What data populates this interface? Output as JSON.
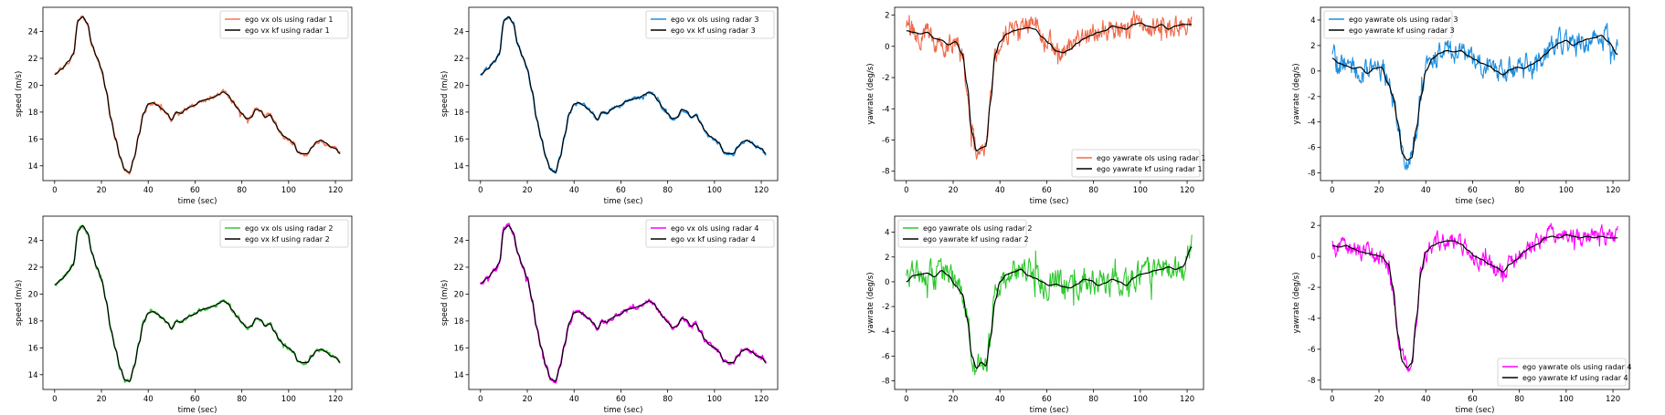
{
  "chart_data": [
    {
      "type": "line",
      "xlabel": "time (sec)",
      "ylabel": "speed (m/s)",
      "xlim": [
        -5,
        127
      ],
      "ylim": [
        12.9,
        25.8
      ],
      "xticks": [
        0,
        20,
        40,
        60,
        80,
        100,
        120
      ],
      "yticks": [
        14,
        16,
        18,
        20,
        22,
        24
      ],
      "legend_position": "upper-right",
      "series": [
        {
          "name": "ego vx ols using radar 1",
          "color": "#f07a55",
          "noise": 0.12,
          "width": 1.6
        },
        {
          "name": "ego vx kf using radar 1",
          "color": "#000000",
          "width": 1.2
        }
      ],
      "signal": {
        "x": [
          0,
          3,
          6,
          8,
          10,
          12,
          14,
          16,
          18,
          20,
          22,
          24,
          26,
          28,
          30,
          32,
          34,
          36,
          38,
          40,
          42,
          44,
          46,
          48,
          50,
          52,
          54,
          56,
          58,
          60,
          62,
          64,
          66,
          68,
          70,
          72,
          74,
          76,
          78,
          80,
          82,
          84,
          86,
          88,
          90,
          92,
          94,
          96,
          98,
          100,
          102,
          104,
          106,
          108,
          110,
          112,
          114,
          116,
          118,
          120,
          122
        ],
        "y": [
          20.8,
          21.2,
          21.8,
          22.3,
          24.8,
          25.1,
          24.6,
          23.0,
          22.1,
          21.2,
          19.6,
          17.5,
          16.0,
          14.6,
          13.7,
          13.5,
          14.6,
          16.3,
          17.9,
          18.6,
          18.7,
          18.5,
          18.2,
          17.9,
          17.4,
          18.0,
          17.9,
          18.2,
          18.4,
          18.5,
          18.8,
          18.9,
          19.0,
          19.1,
          19.3,
          19.5,
          19.3,
          18.8,
          18.3,
          17.9,
          17.5,
          17.6,
          18.2,
          18.1,
          17.6,
          17.8,
          17.2,
          16.6,
          16.2,
          16.0,
          15.7,
          15.0,
          14.9,
          14.9,
          15.4,
          15.8,
          15.9,
          15.7,
          15.4,
          15.3,
          14.9
        ]
      }
    },
    {
      "type": "line",
      "xlabel": "time (sec)",
      "ylabel": "speed (m/s)",
      "xlim": [
        -5,
        127
      ],
      "ylim": [
        12.9,
        25.8
      ],
      "xticks": [
        0,
        20,
        40,
        60,
        80,
        100,
        120
      ],
      "yticks": [
        14,
        16,
        18,
        20,
        22,
        24
      ],
      "legend_position": "upper-right",
      "series": [
        {
          "name": "ego vx ols using radar 3",
          "color": "#1f8fe0",
          "noise": 0.1,
          "width": 1.6
        },
        {
          "name": "ego vx kf using radar 3",
          "color": "#000000",
          "width": 1.2
        }
      ],
      "signal": {
        "x": [
          0,
          3,
          6,
          8,
          10,
          12,
          14,
          16,
          18,
          20,
          22,
          24,
          26,
          28,
          30,
          32,
          34,
          36,
          38,
          40,
          42,
          44,
          46,
          48,
          50,
          52,
          54,
          56,
          58,
          60,
          62,
          64,
          66,
          68,
          70,
          72,
          74,
          76,
          78,
          80,
          82,
          84,
          86,
          88,
          90,
          92,
          94,
          96,
          98,
          100,
          102,
          104,
          106,
          108,
          110,
          112,
          114,
          116,
          118,
          120,
          122
        ],
        "y": [
          20.8,
          21.2,
          21.8,
          22.3,
          24.8,
          25.1,
          24.6,
          23.0,
          22.1,
          21.2,
          19.6,
          17.5,
          16.0,
          14.6,
          13.7,
          13.5,
          14.6,
          16.3,
          17.9,
          18.6,
          18.7,
          18.5,
          18.2,
          17.9,
          17.4,
          18.0,
          17.9,
          18.2,
          18.4,
          18.5,
          18.8,
          18.9,
          19.0,
          19.1,
          19.3,
          19.5,
          19.3,
          18.8,
          18.3,
          17.9,
          17.5,
          17.6,
          18.2,
          18.1,
          17.6,
          17.8,
          17.2,
          16.6,
          16.2,
          16.0,
          15.7,
          15.0,
          14.9,
          14.9,
          15.4,
          15.8,
          15.9,
          15.7,
          15.4,
          15.3,
          14.9
        ]
      }
    },
    {
      "type": "line",
      "xlabel": "time (sec)",
      "ylabel": "yawrate (deg/s)",
      "xlim": [
        -5,
        127
      ],
      "ylim": [
        -8.6,
        2.5
      ],
      "xticks": [
        0,
        20,
        40,
        60,
        80,
        100,
        120
      ],
      "yticks": [
        -8,
        -6,
        -4,
        -2,
        0,
        2
      ],
      "legend_position": "lower-right",
      "series": [
        {
          "name": "ego yawrate ols using radar 1",
          "color": "#f06a4a",
          "noise": 0.55,
          "width": 1.1
        },
        {
          "name": "ego yawrate kf using radar 1",
          "color": "#000000",
          "width": 1.2
        }
      ],
      "signal": {
        "x": [
          0,
          3,
          6,
          9,
          12,
          15,
          18,
          21,
          24,
          26,
          28,
          30,
          32,
          34,
          36,
          38,
          40,
          43,
          46,
          49,
          52,
          55,
          58,
          61,
          64,
          67,
          70,
          73,
          76,
          79,
          82,
          85,
          88,
          91,
          94,
          97,
          100,
          103,
          106,
          109,
          112,
          115,
          118,
          122
        ],
        "y": [
          1.0,
          0.9,
          0.8,
          0.9,
          0.5,
          0.4,
          0.1,
          0.3,
          -0.5,
          -2.5,
          -5.5,
          -6.7,
          -6.5,
          -6.4,
          -3.5,
          -0.5,
          0.3,
          0.8,
          1.0,
          1.1,
          1.2,
          1.1,
          0.6,
          0.2,
          -0.3,
          -0.4,
          -0.2,
          0.2,
          0.5,
          0.7,
          0.9,
          1.0,
          1.3,
          1.2,
          1.1,
          1.4,
          1.5,
          1.3,
          1.2,
          1.4,
          1.1,
          1.3,
          1.4,
          1.4
        ]
      }
    },
    {
      "type": "line",
      "xlabel": "time (sec)",
      "ylabel": "yawrate (deg/s)",
      "xlim": [
        -5,
        127
      ],
      "ylim": [
        -8.6,
        5.0
      ],
      "xticks": [
        0,
        20,
        40,
        60,
        80,
        100,
        120
      ],
      "yticks": [
        -8,
        -6,
        -4,
        -2,
        0,
        2,
        4
      ],
      "legend_position": "upper-left",
      "series": [
        {
          "name": "ego yawrate ols using radar 3",
          "color": "#1f8fe0",
          "noise": 0.75,
          "width": 1.1
        },
        {
          "name": "ego yawrate kf using radar 3",
          "color": "#000000",
          "width": 1.2
        }
      ],
      "signal": {
        "x": [
          0,
          3,
          6,
          9,
          12,
          15,
          18,
          21,
          24,
          26,
          28,
          30,
          32,
          34,
          36,
          38,
          40,
          43,
          46,
          49,
          52,
          55,
          58,
          61,
          64,
          67,
          70,
          73,
          76,
          79,
          82,
          85,
          88,
          91,
          94,
          97,
          100,
          103,
          106,
          109,
          112,
          115,
          118,
          122
        ],
        "y": [
          1.0,
          0.6,
          0.4,
          0.2,
          0.3,
          -0.2,
          0.2,
          0.3,
          -1.0,
          -2.0,
          -4.0,
          -6.5,
          -7.0,
          -6.8,
          -4.5,
          -2.0,
          0.0,
          1.0,
          1.4,
          1.6,
          1.5,
          1.6,
          1.2,
          0.9,
          0.6,
          0.4,
          0.0,
          -0.3,
          0.1,
          0.3,
          0.2,
          0.5,
          0.8,
          1.3,
          1.8,
          2.2,
          2.4,
          2.0,
          2.3,
          2.5,
          2.6,
          2.8,
          2.3,
          1.3
        ]
      }
    },
    {
      "type": "line",
      "xlabel": "time (sec)",
      "ylabel": "speed (m/s)",
      "xlim": [
        -5,
        127
      ],
      "ylim": [
        12.9,
        25.8
      ],
      "xticks": [
        0,
        20,
        40,
        60,
        80,
        100,
        120
      ],
      "yticks": [
        14,
        16,
        18,
        20,
        22,
        24
      ],
      "legend_position": "upper-right",
      "series": [
        {
          "name": "ego vx ols using radar 2",
          "color": "#3cc33c",
          "noise": 0.1,
          "width": 1.6
        },
        {
          "name": "ego vx kf using radar 2",
          "color": "#000000",
          "width": 1.2
        }
      ],
      "signal": {
        "x": [
          0,
          3,
          6,
          8,
          10,
          12,
          14,
          16,
          18,
          20,
          22,
          24,
          26,
          28,
          30,
          32,
          34,
          36,
          38,
          40,
          42,
          44,
          46,
          48,
          50,
          52,
          54,
          56,
          58,
          60,
          62,
          64,
          66,
          68,
          70,
          72,
          74,
          76,
          78,
          80,
          82,
          84,
          86,
          88,
          90,
          92,
          94,
          96,
          98,
          100,
          102,
          104,
          106,
          108,
          110,
          112,
          114,
          116,
          118,
          120,
          122
        ],
        "y": [
          20.7,
          21.1,
          21.7,
          22.2,
          24.7,
          25.1,
          24.6,
          23.0,
          22.0,
          21.1,
          19.5,
          17.4,
          15.9,
          14.5,
          13.6,
          13.5,
          14.6,
          16.3,
          17.9,
          18.6,
          18.7,
          18.5,
          18.2,
          17.9,
          17.4,
          18.0,
          17.9,
          18.2,
          18.4,
          18.5,
          18.8,
          18.9,
          19.0,
          19.1,
          19.3,
          19.5,
          19.3,
          18.8,
          18.3,
          17.9,
          17.5,
          17.6,
          18.2,
          18.1,
          17.6,
          17.8,
          17.2,
          16.6,
          16.2,
          16.0,
          15.7,
          15.0,
          14.9,
          14.9,
          15.4,
          15.8,
          15.9,
          15.7,
          15.4,
          15.3,
          14.9
        ]
      }
    },
    {
      "type": "line",
      "xlabel": "time (sec)",
      "ylabel": "speed (m/s)",
      "xlim": [
        -5,
        127
      ],
      "ylim": [
        12.9,
        25.8
      ],
      "xticks": [
        0,
        20,
        40,
        60,
        80,
        100,
        120
      ],
      "yticks": [
        14,
        16,
        18,
        20,
        22,
        24
      ],
      "legend_position": "upper-right",
      "series": [
        {
          "name": "ego vx ols using radar 4",
          "color": "#ff00ff",
          "noise": 0.12,
          "width": 1.6
        },
        {
          "name": "ego vx kf using radar 4",
          "color": "#000000",
          "width": 1.2
        }
      ],
      "signal": {
        "x": [
          0,
          3,
          6,
          8,
          10,
          12,
          14,
          16,
          18,
          20,
          22,
          24,
          26,
          28,
          30,
          32,
          34,
          36,
          38,
          40,
          42,
          44,
          46,
          48,
          50,
          52,
          54,
          56,
          58,
          60,
          62,
          64,
          66,
          68,
          70,
          72,
          74,
          76,
          78,
          80,
          82,
          84,
          86,
          88,
          90,
          92,
          94,
          96,
          98,
          100,
          102,
          104,
          106,
          108,
          110,
          112,
          114,
          116,
          118,
          120,
          122
        ],
        "y": [
          20.8,
          21.2,
          21.8,
          22.3,
          24.8,
          25.1,
          24.6,
          23.0,
          22.1,
          21.2,
          19.6,
          17.5,
          16.0,
          14.6,
          13.7,
          13.5,
          14.6,
          16.3,
          17.9,
          18.6,
          18.7,
          18.5,
          18.2,
          17.9,
          17.4,
          18.0,
          17.9,
          18.2,
          18.4,
          18.5,
          18.8,
          18.9,
          19.0,
          19.1,
          19.3,
          19.5,
          19.3,
          18.8,
          18.3,
          17.9,
          17.5,
          17.6,
          18.2,
          18.1,
          17.6,
          17.8,
          17.2,
          16.6,
          16.2,
          16.0,
          15.7,
          15.0,
          14.9,
          14.9,
          15.4,
          15.8,
          15.9,
          15.7,
          15.4,
          15.3,
          14.9
        ]
      }
    },
    {
      "type": "line",
      "xlabel": "time (sec)",
      "ylabel": "yawrate (deg/s)",
      "xlim": [
        -5,
        127
      ],
      "ylim": [
        -8.7,
        5.3
      ],
      "xticks": [
        0,
        20,
        40,
        60,
        80,
        100,
        120
      ],
      "yticks": [
        -8,
        -6,
        -4,
        -2,
        0,
        2,
        4
      ],
      "legend_position": "upper-left",
      "series": [
        {
          "name": "ego yawrate ols using radar 2",
          "color": "#2fc82f",
          "noise": 0.8,
          "width": 1.1
        },
        {
          "name": "ego yawrate kf using radar 2",
          "color": "#000000",
          "width": 1.2
        }
      ],
      "signal": {
        "x": [
          0,
          3,
          6,
          9,
          12,
          15,
          18,
          21,
          24,
          26,
          28,
          30,
          32,
          34,
          36,
          38,
          40,
          43,
          46,
          49,
          52,
          55,
          58,
          61,
          64,
          67,
          70,
          73,
          76,
          79,
          82,
          85,
          88,
          91,
          94,
          97,
          100,
          103,
          106,
          109,
          112,
          115,
          118,
          122
        ],
        "y": [
          0.0,
          0.5,
          0.6,
          0.7,
          0.4,
          0.9,
          0.5,
          -0.3,
          -1.0,
          -3.0,
          -6.0,
          -7.0,
          -6.5,
          -6.8,
          -4.5,
          -1.5,
          0.0,
          0.6,
          0.8,
          1.0,
          0.5,
          0.3,
          0.0,
          -0.3,
          -0.2,
          -0.4,
          -0.5,
          -0.2,
          0.2,
          0.1,
          -0.3,
          -0.1,
          0.2,
          0.0,
          -0.3,
          0.3,
          0.6,
          0.7,
          0.9,
          1.0,
          1.2,
          1.0,
          1.2,
          2.8
        ]
      }
    },
    {
      "type": "line",
      "xlabel": "time (sec)",
      "ylabel": "yawrate (deg/s)",
      "xlim": [
        -5,
        127
      ],
      "ylim": [
        -8.6,
        2.6
      ],
      "xticks": [
        0,
        20,
        40,
        60,
        80,
        100,
        120
      ],
      "yticks": [
        -8,
        -6,
        -4,
        -2,
        0,
        2
      ],
      "legend_position": "lower-right",
      "series": [
        {
          "name": "ego yawrate ols using radar 4",
          "color": "#ff00ff",
          "noise": 0.45,
          "width": 1.1
        },
        {
          "name": "ego yawrate kf using radar 4",
          "color": "#000000",
          "width": 1.2
        }
      ],
      "signal": {
        "x": [
          0,
          3,
          6,
          9,
          12,
          15,
          18,
          21,
          24,
          26,
          28,
          30,
          32,
          34,
          36,
          38,
          40,
          43,
          46,
          49,
          52,
          55,
          58,
          61,
          64,
          67,
          70,
          73,
          76,
          79,
          82,
          85,
          88,
          91,
          94,
          97,
          100,
          103,
          106,
          109,
          112,
          115,
          118,
          122
        ],
        "y": [
          0.7,
          0.6,
          0.7,
          0.5,
          0.3,
          0.2,
          0.1,
          0.0,
          -0.5,
          -2.0,
          -5.0,
          -6.8,
          -7.2,
          -6.9,
          -4.0,
          -1.0,
          0.3,
          0.7,
          0.9,
          1.0,
          1.0,
          0.8,
          0.4,
          0.0,
          -0.2,
          -0.5,
          -0.7,
          -1.0,
          -0.5,
          -0.2,
          0.3,
          0.6,
          0.8,
          1.2,
          1.3,
          1.2,
          1.4,
          1.3,
          1.2,
          1.3,
          1.2,
          1.3,
          1.2,
          1.2
        ]
      }
    }
  ]
}
